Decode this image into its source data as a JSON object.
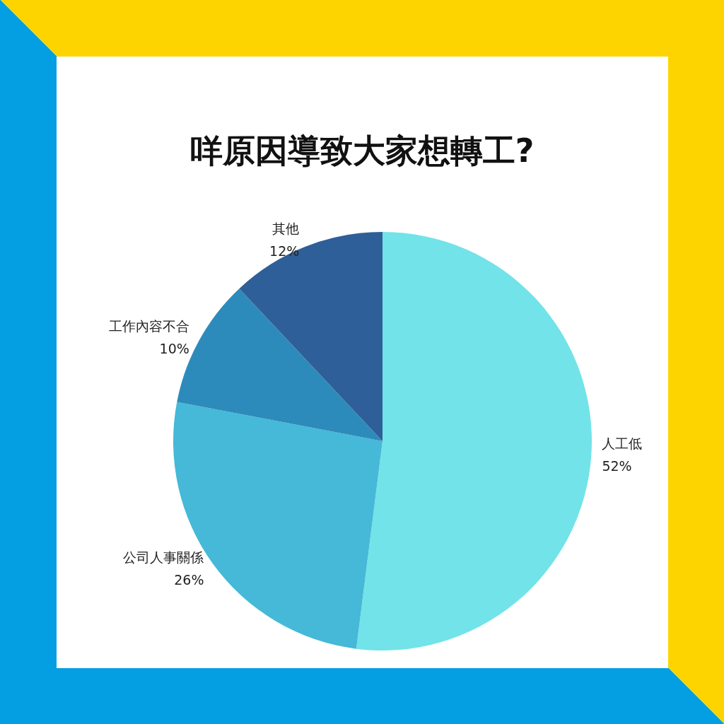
{
  "chart_data": {
    "type": "pie",
    "title": "咩原因導致大家想轉工?",
    "categories": [
      "人工低",
      "公司人事關係",
      "工作內容不合",
      "其他"
    ],
    "values": [
      52,
      26,
      10,
      12
    ],
    "value_labels": [
      "52%",
      "26%",
      "10%",
      "12%"
    ],
    "colors": [
      "#72e3e8",
      "#45b9d7",
      "#2d8bbb",
      "#2f5f98"
    ],
    "legend": false
  }
}
